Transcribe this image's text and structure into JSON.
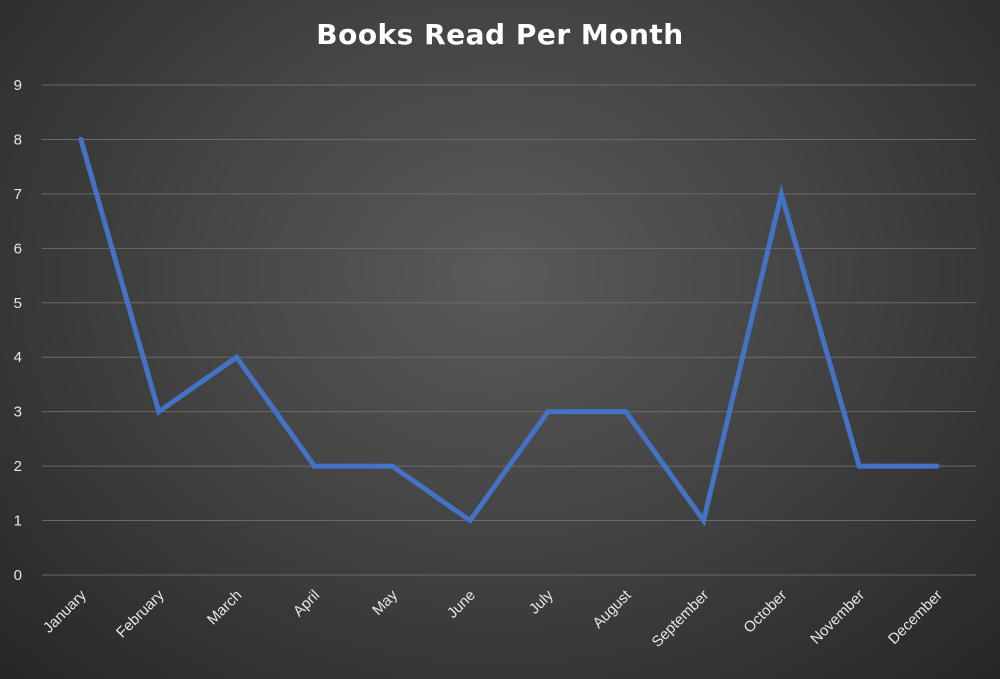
{
  "chart_data": {
    "type": "line",
    "title": "Books Read Per Month",
    "xlabel": "",
    "ylabel": "",
    "categories": [
      "January",
      "February",
      "March",
      "April",
      "May",
      "June",
      "July",
      "August",
      "September",
      "October",
      "November",
      "December"
    ],
    "series": [
      {
        "values": [
          8,
          3,
          4,
          2,
          2,
          1,
          3,
          3,
          1,
          7,
          2,
          2
        ]
      }
    ],
    "ylim": [
      0,
      9
    ],
    "yticks": [
      "0",
      "1",
      "2",
      "3",
      "4",
      "5",
      "6",
      "7",
      "8",
      "9"
    ],
    "grid": true,
    "line_color": "#4472C4",
    "background_color": "#404040",
    "text_color": "#FFFFFF"
  }
}
